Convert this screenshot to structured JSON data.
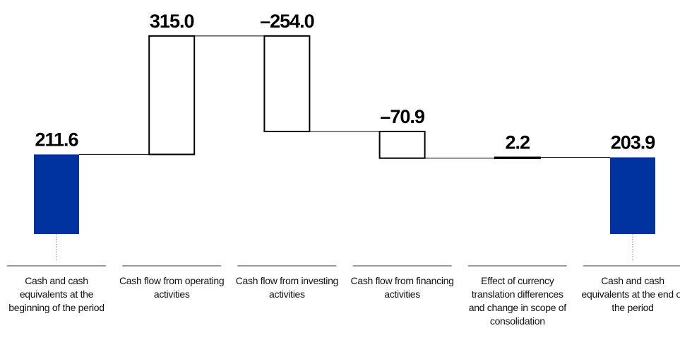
{
  "chart_data": {
    "type": "waterfall",
    "categories": [
      "Cash and cash equivalents at the beginning of the period",
      "Cash flow from operating activities",
      "Cash flow from investing activities",
      "Cash flow from financing activities",
      "Effect of currency translation differences and change in scope of consolidation",
      "Cash and cash equivalents at the end of the period"
    ],
    "values": [
      211.6,
      315.0,
      -254.0,
      -70.9,
      2.2,
      203.9
    ],
    "value_labels": [
      "211.6",
      "315.0",
      "–254.0",
      "–70.9",
      "2.2",
      "203.9"
    ],
    "colors": [
      "#0033a0",
      "#ffffff",
      "#ffffff",
      "#ffffff",
      "#ffffff",
      "#0033a0"
    ]
  }
}
